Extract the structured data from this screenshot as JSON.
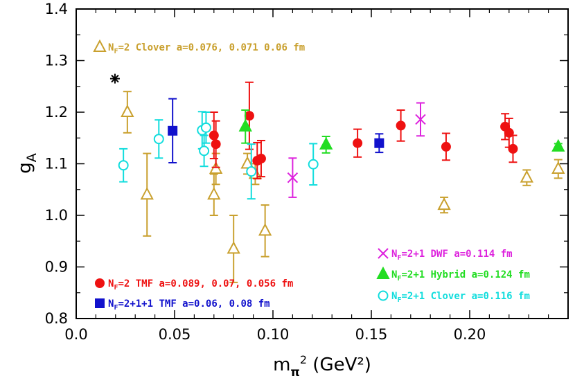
{
  "chart_data": {
    "type": "scatter",
    "xlabel": "m_π² (GeV²)",
    "ylabel": "g_A",
    "xlim": [
      0.0,
      0.25
    ],
    "ylim": [
      0.8,
      1.4
    ],
    "x_ticks": [
      "0.0",
      "0.05",
      "0.10",
      "0.15",
      "0.20"
    ],
    "x_tick_values": [
      0.0,
      0.05,
      0.1,
      0.15,
      0.2
    ],
    "y_ticks": [
      "0.8",
      "0.9",
      "1.0",
      "1.1",
      "1.2",
      "1.3",
      "1.4"
    ],
    "y_tick_values": [
      0.8,
      0.9,
      1.0,
      1.1,
      1.2,
      1.3,
      1.4
    ],
    "grid": false,
    "series": [
      {
        "name": "N_F=2 Clover a=0.076, 0.071 0.06 fm",
        "legend_parts": {
          "prefix": "N",
          "sub": "F",
          "rest": "=2 Clover a=0.076, 0.071 0.06 fm"
        },
        "marker": "triangle-open",
        "color": "#c9a02e",
        "points": [
          {
            "x": 0.026,
            "y": 1.2,
            "err": 0.04
          },
          {
            "x": 0.036,
            "y": 1.04,
            "err": 0.08
          },
          {
            "x": 0.07,
            "y": 1.04,
            "err": 0.04
          },
          {
            "x": 0.071,
            "y": 1.09,
            "err": 0.03
          },
          {
            "x": 0.08,
            "y": 0.935,
            "err": 0.065
          },
          {
            "x": 0.087,
            "y": 1.1,
            "err": 0.02
          },
          {
            "x": 0.091,
            "y": 1.08,
            "err": 0.02
          },
          {
            "x": 0.096,
            "y": 0.97,
            "err": 0.05
          },
          {
            "x": 0.187,
            "y": 1.02,
            "err": 0.015
          },
          {
            "x": 0.229,
            "y": 1.073,
            "err": 0.015
          },
          {
            "x": 0.245,
            "y": 1.09,
            "err": 0.018
          }
        ]
      },
      {
        "name": "N_F=2 TMF a=0.089, 0.07, 0.056 fm",
        "legend_parts": {
          "prefix": "N",
          "sub": "F",
          "rest": "=2 TMF a=0.089, 0.07, 0.056 fm"
        },
        "marker": "circle-filled",
        "color": "#ee1111",
        "points": [
          {
            "x": 0.07,
            "y": 1.155,
            "err": 0.045
          },
          {
            "x": 0.071,
            "y": 1.138,
            "err": 0.045
          },
          {
            "x": 0.088,
            "y": 1.193,
            "err": 0.065
          },
          {
            "x": 0.092,
            "y": 1.106,
            "err": 0.035
          },
          {
            "x": 0.094,
            "y": 1.11,
            "err": 0.035
          },
          {
            "x": 0.143,
            "y": 1.14,
            "err": 0.027
          },
          {
            "x": 0.165,
            "y": 1.174,
            "err": 0.03
          },
          {
            "x": 0.188,
            "y": 1.133,
            "err": 0.026
          },
          {
            "x": 0.218,
            "y": 1.172,
            "err": 0.025
          },
          {
            "x": 0.22,
            "y": 1.16,
            "err": 0.028
          },
          {
            "x": 0.222,
            "y": 1.129,
            "err": 0.026
          }
        ]
      },
      {
        "name": "N_F=2+1+1 TMF a=0.06, 0.08 fm",
        "legend_parts": {
          "prefix": "N",
          "sub": "F",
          "rest": "=2+1+1 TMF a=0.06, 0.08 fm"
        },
        "marker": "square-filled",
        "color": "#1111cc",
        "points": [
          {
            "x": 0.049,
            "y": 1.164,
            "err": 0.062
          },
          {
            "x": 0.154,
            "y": 1.14,
            "err": 0.018
          }
        ]
      },
      {
        "name": "N_F=2+1 DWF a=0.114 fm",
        "legend_parts": {
          "prefix": "N",
          "sub": "F",
          "rest": "=2+1 DWF a=0.114 fm"
        },
        "marker": "cross",
        "color": "#dd22dd",
        "points": [
          {
            "x": 0.11,
            "y": 1.073,
            "err": 0.038
          },
          {
            "x": 0.175,
            "y": 1.186,
            "err": 0.032
          }
        ]
      },
      {
        "name": "N_F=2+1 Hybrid a=0.124 fm",
        "legend_parts": {
          "prefix": "N",
          "sub": "F",
          "rest": "=2+1 Hybrid a=0.124 fm"
        },
        "marker": "triangle-filled",
        "color": "#22dd22",
        "points": [
          {
            "x": 0.086,
            "y": 1.172,
            "err": 0.032
          },
          {
            "x": 0.127,
            "y": 1.137,
            "err": 0.016
          },
          {
            "x": 0.245,
            "y": 1.133,
            "err": 0.006
          }
        ]
      },
      {
        "name": "N_F=2+1 Clover a=0.116 fm",
        "legend_parts": {
          "prefix": "N",
          "sub": "F",
          "rest": "=2+1 Clover a=0.116 fm"
        },
        "marker": "circle-open",
        "color": "#11dddd",
        "points": [
          {
            "x": 0.024,
            "y": 1.097,
            "err": 0.032
          },
          {
            "x": 0.042,
            "y": 1.148,
            "err": 0.037
          },
          {
            "x": 0.064,
            "y": 1.165,
            "err": 0.036
          },
          {
            "x": 0.065,
            "y": 1.125,
            "err": 0.03
          },
          {
            "x": 0.066,
            "y": 1.17,
            "err": 0.03
          },
          {
            "x": 0.089,
            "y": 1.085,
            "err": 0.053
          },
          {
            "x": 0.1205,
            "y": 1.099,
            "err": 0.04
          }
        ]
      }
    ],
    "extra_markers": [
      {
        "marker": "star",
        "color": "#000000",
        "x": 0.0197,
        "y": 1.265
      }
    ]
  }
}
